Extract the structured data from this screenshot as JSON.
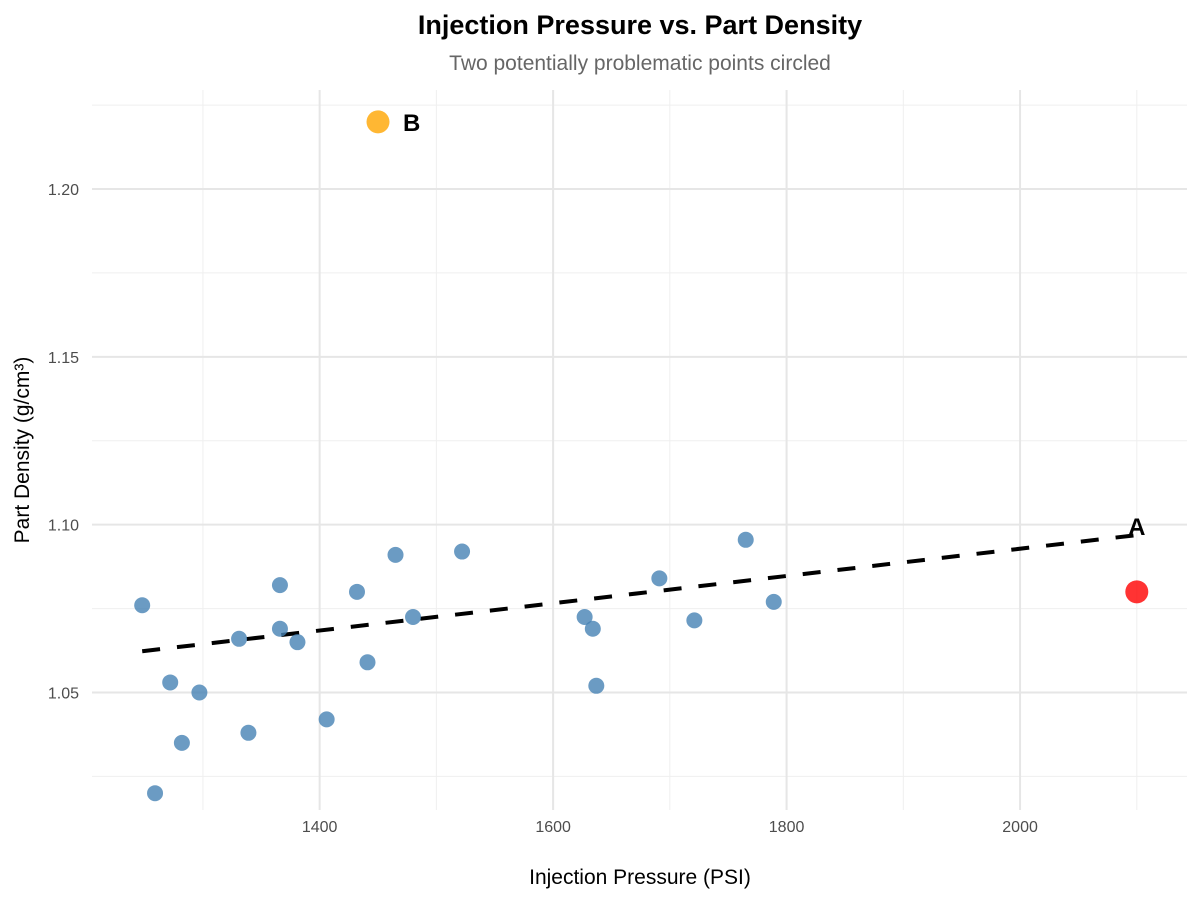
{
  "chart_data": {
    "type": "scatter",
    "title": "Injection Pressure vs. Part Density",
    "subtitle": "Two potentially problematic points circled",
    "xlabel": "Injection Pressure (PSI)",
    "ylabel": "Part Density (g/cm³)",
    "xlim": [
      1205,
      2143
    ],
    "ylim": [
      1.015,
      1.2295
    ],
    "xticks": [
      1400,
      1600,
      1800,
      2000
    ],
    "xtick_labels": [
      "1400",
      "1600",
      "1800",
      "2000"
    ],
    "xminor": [
      1300,
      1500,
      1700,
      1900,
      2100
    ],
    "yticks": [
      1.05,
      1.1,
      1.15,
      1.2
    ],
    "ytick_labels": [
      "1.05",
      "1.10",
      "1.15",
      "1.20"
    ],
    "yminor": [
      1.025,
      1.075,
      1.125,
      1.175,
      1.225
    ],
    "grid": true,
    "series": [
      {
        "name": "parts",
        "color": "#4682B4",
        "points": [
          [
            1248,
            1.076
          ],
          [
            1259,
            1.02
          ],
          [
            1272,
            1.053
          ],
          [
            1282,
            1.035
          ],
          [
            1297,
            1.05
          ],
          [
            1331,
            1.066
          ],
          [
            1339,
            1.038
          ],
          [
            1366,
            1.082
          ],
          [
            1366,
            1.069
          ],
          [
            1381,
            1.065
          ],
          [
            1406,
            1.042
          ],
          [
            1432,
            1.08
          ],
          [
            1441,
            1.059
          ],
          [
            1465,
            1.091
          ],
          [
            1480,
            1.0725
          ],
          [
            1522,
            1.092
          ],
          [
            1627,
            1.0725
          ],
          [
            1634,
            1.069
          ],
          [
            1637,
            1.052
          ],
          [
            1691,
            1.084
          ],
          [
            1721,
            1.0715
          ],
          [
            1765,
            1.0955
          ],
          [
            1789,
            1.077
          ]
        ]
      }
    ],
    "highlights": [
      {
        "label": "A",
        "x": 2100,
        "y": 1.08,
        "color": "#FF0000"
      },
      {
        "label": "B",
        "x": 1450,
        "y": 1.22,
        "color": "#FFA500"
      }
    ],
    "trendline": {
      "style": "dashed",
      "color": "#000000",
      "x": [
        1248,
        2100
      ],
      "y": [
        1.0623,
        1.0969
      ]
    }
  }
}
